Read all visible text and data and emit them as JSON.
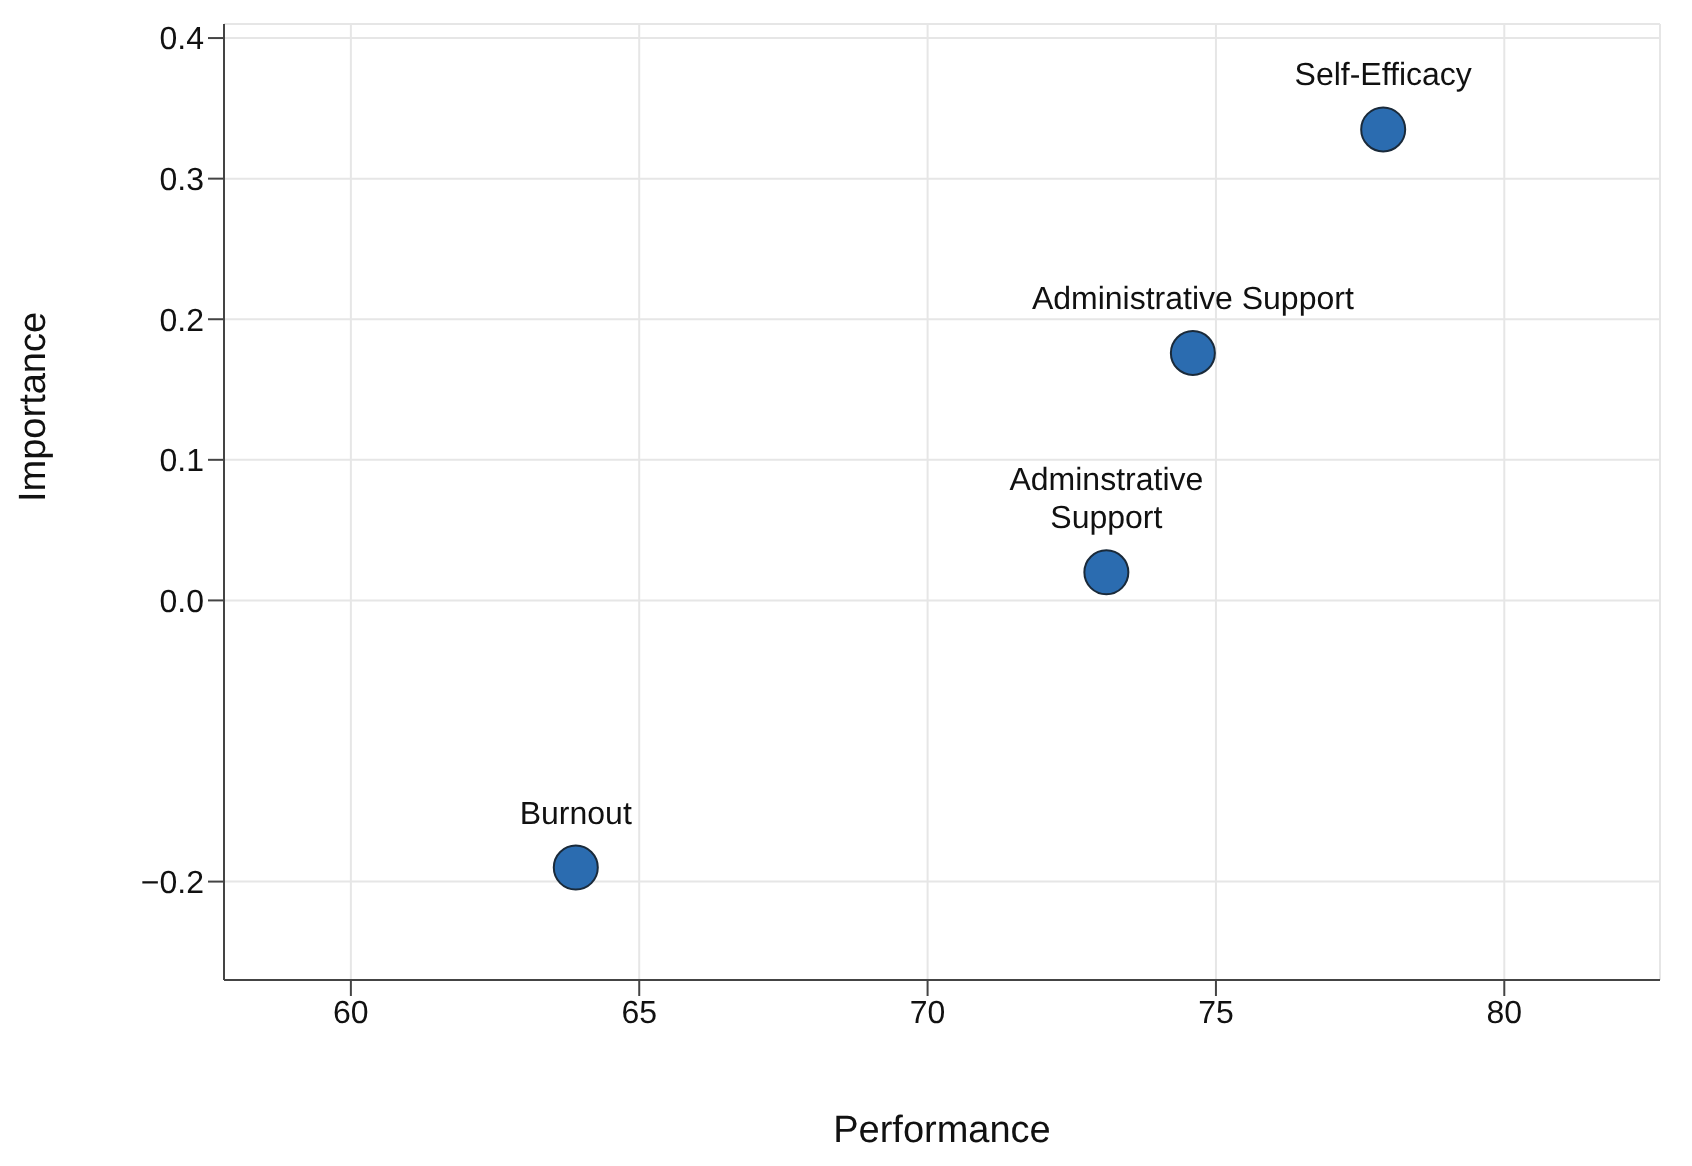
{
  "chart_data": {
    "type": "scatter",
    "xlabel": "Performance",
    "ylabel": "Importance",
    "x": [
      77.9,
      74.6,
      73.1,
      63.9
    ],
    "series": [
      {
        "color": "#2b6cb0",
        "values": [
          0.335,
          0.176,
          0.02,
          -0.19
        ]
      }
    ],
    "annotations": [
      {
        "text": "Self-Efficacy",
        "x": 77.9,
        "y": 0.335
      },
      {
        "text": "Administrative Support",
        "x": 74.6,
        "y": 0.176
      },
      {
        "text": "Adminstrative\nSupport",
        "x": 73.1,
        "y": 0.02
      },
      {
        "text": "Burnout",
        "x": 63.9,
        "y": -0.19
      }
    ],
    "xlim": [
      57.8,
      82.7
    ],
    "xticks": [
      60,
      65,
      70,
      75,
      80
    ],
    "ylim": [
      -0.27,
      0.41
    ],
    "yticks": [
      -0.2,
      {
        "value": 0,
        "label": "0.0"
      },
      0.1,
      0.2,
      0.3,
      0.4
    ],
    "grid": true,
    "marker": "circle",
    "legend": false
  }
}
